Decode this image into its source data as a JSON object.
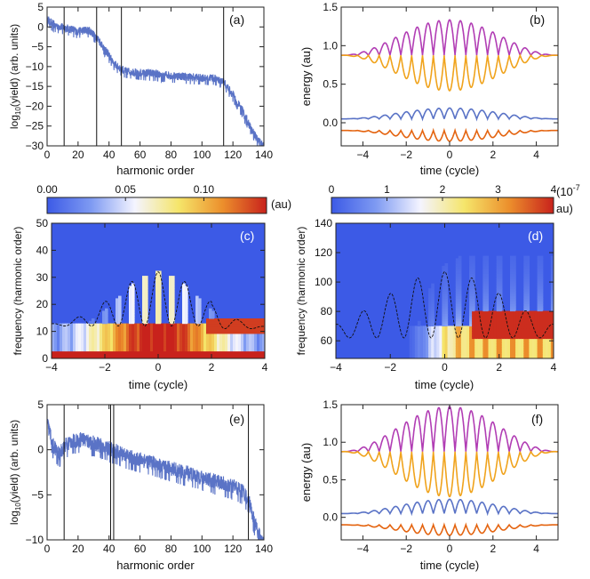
{
  "chart_data": [
    {
      "id": "a",
      "type": "line",
      "panel_label": "(a)",
      "xlabel": "harmonic order",
      "ylabel_prefix": "log",
      "ylabel_sub": "10",
      "ylabel_suffix": "(yield) (arb. units)",
      "xlim": [
        0,
        140
      ],
      "ylim": [
        -30,
        5
      ],
      "xticks": [
        0,
        20,
        40,
        60,
        80,
        100,
        120,
        140
      ],
      "yticks": [
        5,
        0,
        -5,
        -10,
        -15,
        -20,
        -25,
        -30
      ],
      "series_color": "#5a73c6",
      "vlines": [
        11,
        32,
        48,
        114
      ],
      "envelope": [
        [
          0,
          2
        ],
        [
          5,
          0.5
        ],
        [
          10,
          0
        ],
        [
          20,
          -1
        ],
        [
          27,
          -0.8
        ],
        [
          32,
          -2.5
        ],
        [
          38,
          -6
        ],
        [
          44,
          -9.5
        ],
        [
          50,
          -11
        ],
        [
          60,
          -11.5
        ],
        [
          70,
          -11.8
        ],
        [
          80,
          -12.2
        ],
        [
          90,
          -12.5
        ],
        [
          100,
          -12.8
        ],
        [
          108,
          -12.8
        ],
        [
          114,
          -13.8
        ],
        [
          120,
          -17
        ],
        [
          126,
          -21
        ],
        [
          131,
          -25
        ],
        [
          136,
          -28.5
        ],
        [
          140,
          -30
        ]
      ]
    },
    {
      "id": "b",
      "type": "line",
      "panel_label": "(b)",
      "xlabel": "time (cycle)",
      "ylabel": "energy (au)",
      "xlim": [
        -5,
        5
      ],
      "ylim": [
        -0.3,
        1.5
      ],
      "xticks": [
        -4,
        -2,
        0,
        2,
        4
      ],
      "yticks": [
        0.0,
        0.5,
        1.0,
        1.5
      ],
      "series": [
        {
          "name": "upper",
          "color": "#b13db4",
          "base": 0.875,
          "amp": 0.46,
          "mode": "up"
        },
        {
          "name": "lower",
          "color": "#f0a31c",
          "base": 0.875,
          "amp": 0.46,
          "mode": "down"
        },
        {
          "name": "blue",
          "color": "#5a73c6",
          "base": 0.05,
          "amp": 0.14,
          "mode": "up"
        },
        {
          "name": "orange",
          "color": "#e46410",
          "base": -0.1,
          "amp": 0.14,
          "mode": "down"
        }
      ]
    },
    {
      "id": "c",
      "type": "heatmap",
      "panel_label": "(c)",
      "xlabel": "time (cycle)",
      "ylabel": "frequency (harmonic order)",
      "xlim": [
        -4,
        4
      ],
      "ylim": [
        0,
        50
      ],
      "xticks": [
        -4,
        -2,
        0,
        2,
        4
      ],
      "yticks": [
        0,
        10,
        20,
        30,
        40,
        50
      ],
      "colorbar": {
        "ticks": [
          "0.00",
          "0.05",
          "0.10"
        ],
        "tick_values": [
          0.0,
          0.05,
          0.1
        ],
        "max": 0.14,
        "unit": "(au)"
      }
    },
    {
      "id": "d",
      "type": "heatmap",
      "panel_label": "(d)",
      "xlabel": "time (cycle)",
      "ylabel": "frequency (harmonic order)",
      "xlim": [
        -4,
        4
      ],
      "ylim": [
        48,
        140
      ],
      "xticks": [
        -4,
        -2,
        0,
        2,
        4
      ],
      "yticks": [
        60,
        80,
        100,
        120,
        140
      ],
      "colorbar": {
        "ticks": [
          "0",
          "1",
          "2",
          "3",
          "4"
        ],
        "tick_values": [
          0,
          1,
          2,
          3,
          4
        ],
        "max": 4,
        "unit_top": "(10",
        "unit_exp": "-7",
        "unit_bottom": "au)"
      }
    },
    {
      "id": "e",
      "type": "line",
      "panel_label": "(e)",
      "xlabel": "harmonic order",
      "ylabel_prefix": "log",
      "ylabel_sub": "10",
      "ylabel_suffix": "(yield) (arb. units)",
      "xlim": [
        0,
        140
      ],
      "ylim": [
        -10,
        5
      ],
      "xticks": [
        0,
        20,
        40,
        60,
        80,
        100,
        120,
        140
      ],
      "yticks": [
        5,
        0,
        -5,
        -10
      ],
      "series_color": "#5a73c6",
      "vlines": [
        11,
        41,
        43,
        130
      ],
      "envelope": [
        [
          0,
          3
        ],
        [
          4,
          0.5
        ],
        [
          8,
          -0.5
        ],
        [
          11,
          0.5
        ],
        [
          16,
          1
        ],
        [
          22,
          1.2
        ],
        [
          30,
          0.8
        ],
        [
          40,
          0.2
        ],
        [
          50,
          -0.5
        ],
        [
          60,
          -1
        ],
        [
          70,
          -1.5
        ],
        [
          80,
          -2
        ],
        [
          90,
          -2.5
        ],
        [
          100,
          -3
        ],
        [
          110,
          -3.5
        ],
        [
          120,
          -4
        ],
        [
          126,
          -4.5
        ],
        [
          130,
          -5.5
        ],
        [
          134,
          -8
        ],
        [
          138,
          -10
        ],
        [
          140,
          -10.5
        ]
      ]
    },
    {
      "id": "f",
      "type": "line",
      "panel_label": "(f)",
      "xlabel": "time (cycle)",
      "ylabel": "energy (au)",
      "xlim": [
        -5,
        5
      ],
      "ylim": [
        -0.3,
        1.5
      ],
      "xticks": [
        -4,
        -2,
        0,
        2,
        4
      ],
      "yticks": [
        0.0,
        0.5,
        1.0,
        1.5
      ],
      "series": [
        {
          "name": "upper",
          "color": "#b13db4",
          "base": 0.875,
          "amp": 0.6,
          "mode": "up"
        },
        {
          "name": "lower",
          "color": "#f0a31c",
          "base": 0.875,
          "amp": 0.6,
          "mode": "down"
        },
        {
          "name": "blue",
          "color": "#5a73c6",
          "base": 0.05,
          "amp": 0.19,
          "mode": "up"
        },
        {
          "name": "orange",
          "color": "#e46410",
          "base": -0.1,
          "amp": 0.14,
          "mode": "down"
        }
      ]
    }
  ]
}
